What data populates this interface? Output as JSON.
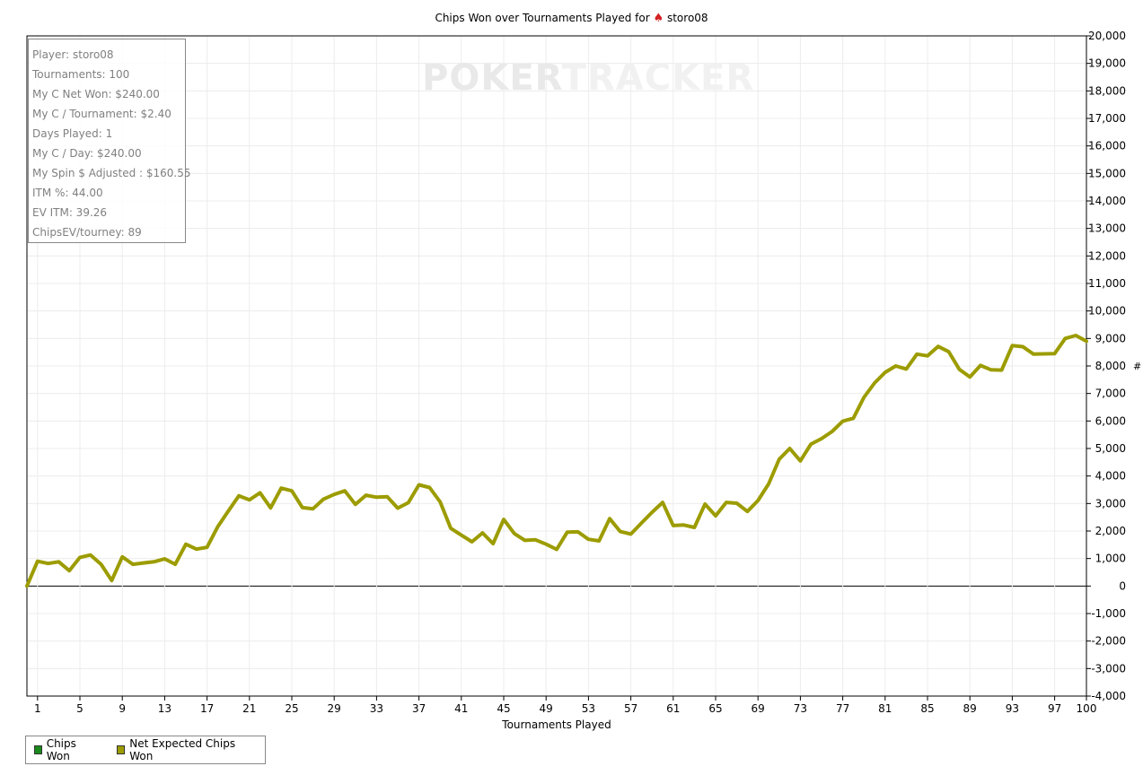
{
  "chart_data": {
    "type": "line",
    "title": "Chips Won over Tournaments Played for",
    "player_name": "storo08",
    "title_icon": "spade-icon",
    "xlabel": "Tournaments Played",
    "ylabel": "#",
    "xlim": [
      0,
      100
    ],
    "ylim": [
      -4000,
      20000
    ],
    "y_ticks": [
      -4000,
      -3000,
      -2000,
      -1000,
      0,
      1000,
      2000,
      3000,
      4000,
      5000,
      6000,
      7000,
      8000,
      9000,
      10000,
      11000,
      12000,
      13000,
      14000,
      15000,
      16000,
      17000,
      18000,
      19000,
      20000
    ],
    "y_tick_labels": [
      "-4,000",
      "-3,000",
      "-2,000",
      "-1,000",
      "0",
      "1,000",
      "2,000",
      "3,000",
      "4,000",
      "5,000",
      "6,000",
      "7,000",
      "8,000",
      "9,000",
      "10,000",
      "11,000",
      "12,000",
      "13,000",
      "14,000",
      "15,000",
      "16,000",
      "17,000",
      "18,000",
      "19,000",
      "20,000"
    ],
    "x_ticks": [
      1,
      5,
      9,
      13,
      17,
      21,
      25,
      29,
      33,
      37,
      41,
      45,
      49,
      53,
      57,
      61,
      65,
      69,
      73,
      77,
      81,
      85,
      89,
      93,
      97,
      100
    ],
    "x_tick_labels": [
      "1",
      "5",
      "9",
      "13",
      "17",
      "21",
      "25",
      "29",
      "33",
      "37",
      "41",
      "45",
      "49",
      "53",
      "57",
      "61",
      "65",
      "69",
      "73",
      "77",
      "81",
      "85",
      "89",
      "93",
      "97",
      "100"
    ],
    "grid": true,
    "legend_position": "bottom-left",
    "series": [
      {
        "name": "Chips Won",
        "color": "#1a8a1a",
        "values": []
      },
      {
        "name": "Net Expected Chips Won",
        "color": "#9c9c00",
        "x": [
          0,
          1,
          2,
          3,
          4,
          5,
          6,
          7,
          8,
          9,
          10,
          11,
          12,
          13,
          14,
          15,
          16,
          17,
          18,
          19,
          20,
          21,
          22,
          23,
          24,
          25,
          26,
          27,
          28,
          29,
          30,
          31,
          32,
          33,
          34,
          35,
          36,
          37,
          38,
          39,
          40,
          41,
          42,
          43,
          44,
          45,
          46,
          47,
          48,
          49,
          50,
          51,
          52,
          53,
          54,
          55,
          56,
          57,
          58,
          59,
          60,
          61,
          62,
          63,
          64,
          65,
          66,
          67,
          68,
          69,
          70,
          71,
          72,
          73,
          74,
          75,
          76,
          77,
          78,
          79,
          80,
          81,
          82,
          83,
          84,
          85,
          86,
          87,
          88,
          89,
          90,
          91,
          92,
          93,
          94,
          95,
          96,
          97,
          98,
          99,
          100
        ],
        "values": [
          0,
          900,
          820,
          880,
          560,
          1040,
          1130,
          790,
          200,
          1060,
          790,
          840,
          880,
          990,
          790,
          1520,
          1340,
          1410,
          2150,
          2720,
          3280,
          3130,
          3390,
          2840,
          3560,
          3460,
          2850,
          2810,
          3160,
          3330,
          3460,
          2970,
          3300,
          3230,
          3250,
          2830,
          3030,
          3680,
          3580,
          3060,
          2100,
          1850,
          1610,
          1930,
          1540,
          2420,
          1910,
          1660,
          1680,
          1520,
          1330,
          1960,
          1970,
          1700,
          1640,
          2450,
          1980,
          1890,
          2290,
          2680,
          3040,
          2200,
          2220,
          2130,
          2980,
          2550,
          3040,
          3010,
          2710,
          3110,
          3710,
          4610,
          5000,
          4550,
          5160,
          5360,
          5620,
          5990,
          6100,
          6860,
          7380,
          7770,
          8000,
          7890,
          8430,
          8370,
          8710,
          8520,
          7880,
          7600,
          8020,
          7860,
          7850,
          8740,
          8700,
          8430,
          8440,
          8450,
          9000,
          9110,
          8900
        ]
      }
    ]
  },
  "stats": [
    "Player: storo08",
    "Tournaments: 100",
    "My C Net Won: $240.00",
    "My C / Tournament: $2.40",
    "Days Played: 1",
    "My C / Day: $240.00",
    "My Spin $ Adjusted : $160.55",
    "ITM %: 44.00",
    "EV ITM: 39.26",
    "ChipsEV/tourney: 89"
  ],
  "watermark": {
    "part1": "POKER",
    "part2": "TRACKER"
  }
}
